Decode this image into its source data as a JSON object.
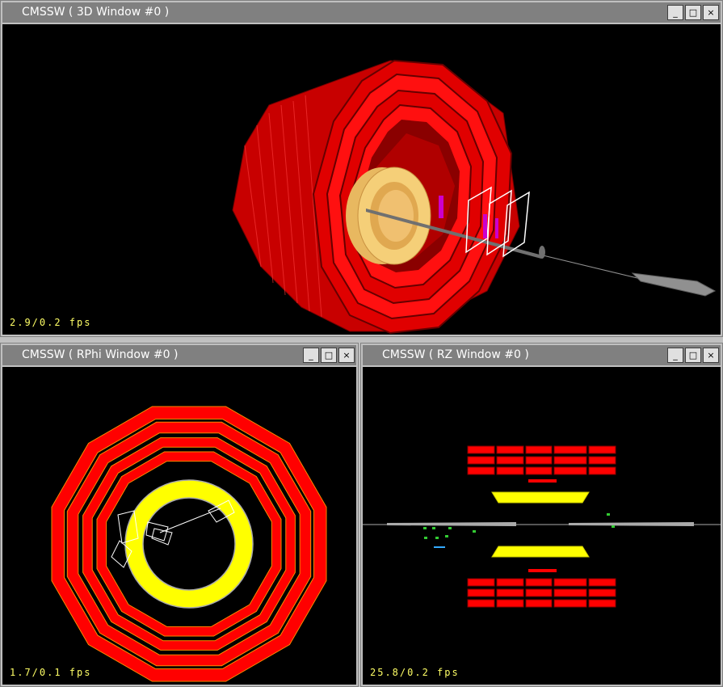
{
  "windows": {
    "w3d": {
      "title": "CMSSW ( 3D Window #0 )",
      "fps": "2.9/0.2 fps"
    },
    "rphi": {
      "title": "CMSSW ( RPhi Window #0 )",
      "fps": "1.7/0.1 fps"
    },
    "rz": {
      "title": "CMSSW ( RZ Window #0 )",
      "fps": "25.8/0.2 fps"
    }
  },
  "controls": {
    "minimize": "_",
    "maximize": "□",
    "close": "×"
  },
  "icons": {
    "minimize": "minimize-icon",
    "maximize": "maximize-icon",
    "close": "close-icon"
  },
  "colors": {
    "calorimeter": "#ff0000",
    "tracker": "#ffff00",
    "tracker_3d": "#f5cf78",
    "background": "#000000",
    "fps_text": "#ffff66"
  }
}
